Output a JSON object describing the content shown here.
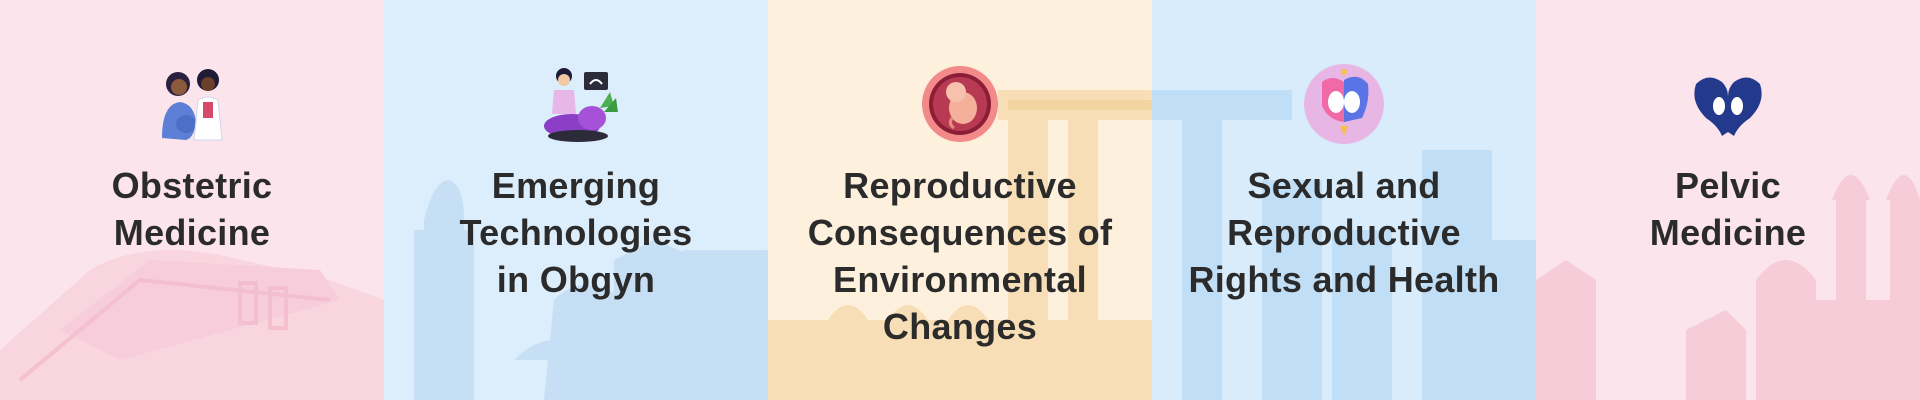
{
  "colors": {
    "pink_bg": "#fce4ec",
    "blue_bg": "#dcedfb",
    "peach_bg": "#fdf0dc",
    "light_blue_bg": "#d8ecfb",
    "text": "#2b2b2b",
    "navy": "#233a8c"
  },
  "specialties": [
    {
      "icon": "doctor-patient-icon",
      "lines": [
        "Obstetric",
        "Medicine"
      ]
    },
    {
      "icon": "ultrasound-icon",
      "lines": [
        "Emerging",
        "Technologies",
        "in Obgyn"
      ]
    },
    {
      "icon": "fetus-in-womb-icon",
      "lines": [
        "Reproductive",
        "Consequences of",
        "Environmental",
        "Changes"
      ]
    },
    {
      "icon": "women-faces-icon",
      "lines": [
        "Sexual and",
        "Reproductive",
        "Rights and Health"
      ]
    },
    {
      "icon": "pelvis-icon",
      "lines": [
        "Pelvic",
        "Medicine"
      ]
    }
  ]
}
